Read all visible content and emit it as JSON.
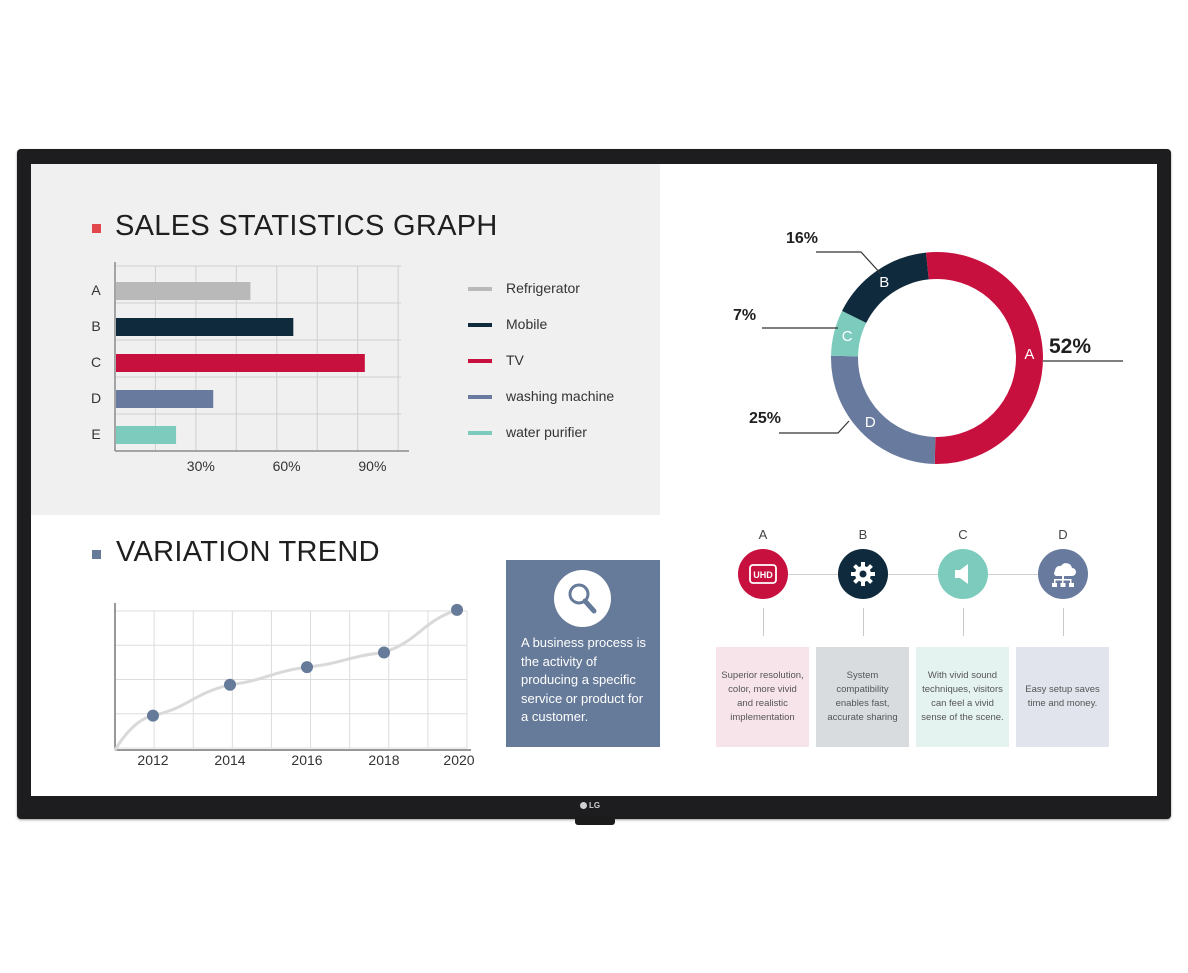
{
  "tv": {
    "brand": "LG"
  },
  "sales": {
    "title": "SALES STATISTICS GRAPH",
    "title_marker_color": "#e2474b",
    "legend": [
      {
        "label": "Refrigerator",
        "color": "#b9b9b9"
      },
      {
        "label": "Mobile",
        "color": "#0e2a3c"
      },
      {
        "label": "TV",
        "color": "#c8103e"
      },
      {
        "label": "washing machine",
        "color": "#687b9e"
      },
      {
        "label": "water purifier",
        "color": "#7ccbbd"
      }
    ]
  },
  "donut": {
    "labels": {
      "a": "52%",
      "b": "16%",
      "c": "7%",
      "d": "25%"
    }
  },
  "trend": {
    "title": "VARIATION TREND",
    "title_marker_color": "#667a99"
  },
  "info": {
    "text": "A business process is the activity of producing a specific service or product for a customer.",
    "icon": "search-icon"
  },
  "features": [
    {
      "letter": "A",
      "icon": "uhd-icon",
      "icon_text": "UHD",
      "color": "#c8103e",
      "card_bg": "#f6e4ea",
      "text": "Superior resolution, color, more vivid and realistic implementation"
    },
    {
      "letter": "B",
      "icon": "gear-icon",
      "icon_text": "",
      "color": "#0e2a3c",
      "card_bg": "#d8dcdf",
      "text": "System compatibility enables fast, accurate sharing"
    },
    {
      "letter": "C",
      "icon": "speaker-icon",
      "icon_text": "",
      "color": "#7ccbbd",
      "card_bg": "#e5f3f0",
      "text": "With vivid sound techniques, visitors can feel a vivid sense of the scene."
    },
    {
      "letter": "D",
      "icon": "network-icon",
      "icon_text": "",
      "color": "#687b9e",
      "card_bg": "#e1e4ec",
      "text": "Easy setup saves time and money."
    }
  ],
  "chart_data": [
    {
      "type": "bar",
      "orientation": "horizontal",
      "title": "SALES STATISTICS GRAPH",
      "categories": [
        "A",
        "B",
        "C",
        "D",
        "E"
      ],
      "series": [
        {
          "values": [
            47,
            62,
            87,
            34,
            21
          ]
        }
      ],
      "colors": [
        "#b9b9b9",
        "#0e2a3c",
        "#c8103e",
        "#687b9e",
        "#7ccbbd"
      ],
      "xticks": [
        "30%",
        "60%",
        "90%"
      ],
      "xtick_values": [
        30,
        60,
        90
      ],
      "xlim": [
        0,
        100
      ],
      "grid": true
    },
    {
      "type": "pie",
      "donut": true,
      "categories": [
        "A",
        "B",
        "C",
        "D"
      ],
      "values": [
        52,
        16,
        7,
        25
      ],
      "colors": [
        "#c8103e",
        "#0e2a3c",
        "#7ccbbd",
        "#687b9e"
      ]
    },
    {
      "type": "line",
      "title": "VARIATION TREND",
      "x": [
        "2012",
        "2014",
        "2016",
        "2018",
        "2020"
      ],
      "series": [
        {
          "values": [
            22,
            43,
            55,
            65,
            94
          ]
        }
      ],
      "ylim": [
        0,
        100
      ],
      "grid": true,
      "line_color": "#d9d9d9",
      "point_color": "#667a99"
    }
  ]
}
